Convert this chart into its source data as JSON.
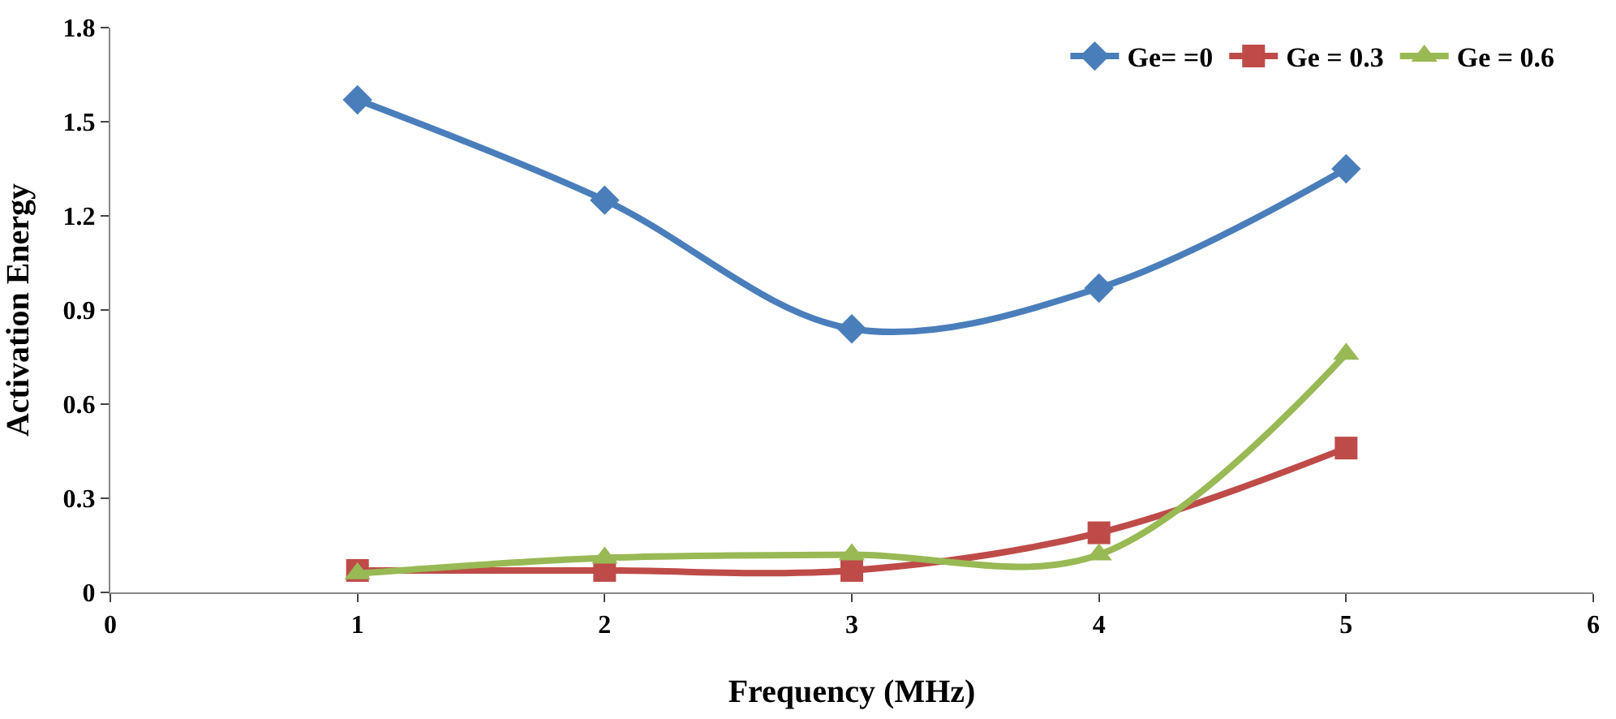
{
  "chart_data": {
    "type": "line",
    "xlabel": "Frequency (MHz)",
    "ylabel": "Activation Energy",
    "x": [
      1,
      2,
      3,
      4,
      5
    ],
    "series": [
      {
        "name": "Ge= =0",
        "color": "#4a7ebb",
        "marker": "diamond",
        "values": [
          1.57,
          1.25,
          0.84,
          0.97,
          1.35
        ]
      },
      {
        "name": "Ge = 0.3",
        "color": "#be4b48",
        "marker": "square",
        "values": [
          0.07,
          0.07,
          0.07,
          0.19,
          0.46
        ]
      },
      {
        "name": "Ge = 0.6",
        "color": "#98b954",
        "marker": "triangle",
        "values": [
          0.06,
          0.11,
          0.12,
          0.12,
          0.76
        ]
      }
    ],
    "xlim": [
      0,
      6
    ],
    "xticks": [
      0,
      1,
      2,
      3,
      4,
      5,
      6
    ],
    "ylim": [
      0,
      1.8
    ],
    "yticks": [
      0,
      0.3,
      0.6,
      0.9,
      1.2,
      1.5,
      1.8
    ],
    "legend": "top right"
  }
}
